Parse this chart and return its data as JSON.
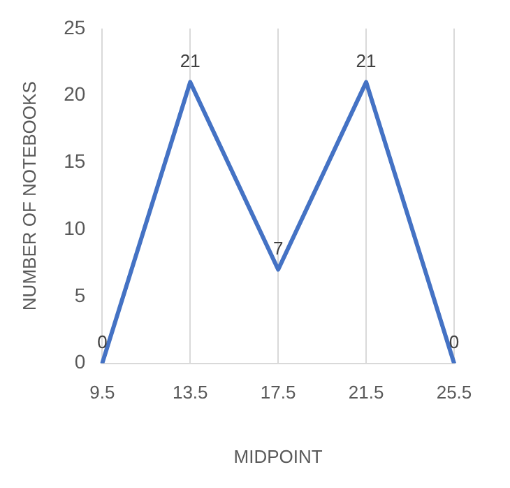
{
  "chart_data": {
    "type": "line",
    "xlabel": "MIDPOINT",
    "ylabel": "NUMBER OF NOTEBOOKS",
    "categories": [
      "9.5",
      "13.5",
      "17.5",
      "21.5",
      "25.5"
    ],
    "series": [
      {
        "color": "#4472c4",
        "values": [
          0,
          21,
          7,
          21,
          0
        ]
      }
    ],
    "ylim": [
      0,
      25
    ],
    "yticks": [
      0,
      5,
      10,
      15,
      20,
      25
    ],
    "grid": "x",
    "legend": false,
    "marker": "none",
    "data_labels": true
  }
}
